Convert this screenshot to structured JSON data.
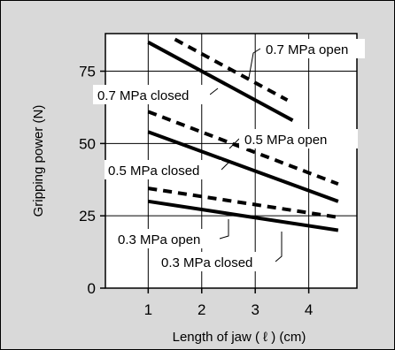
{
  "chart_data": {
    "type": "line",
    "xlabel": "Length of jaw ( ℓ ) (cm)",
    "ylabel": "Gripping power (N)",
    "xlim": [
      0.2,
      4.9
    ],
    "ylim": [
      0,
      88
    ],
    "x_ticks": [
      1,
      2,
      3,
      4
    ],
    "y_ticks": [
      0,
      25,
      50,
      75
    ],
    "grid": true,
    "series": [
      {
        "name": "0.7 MPa open",
        "style": "dashed",
        "points": [
          [
            1.5,
            86
          ],
          [
            3.6,
            65
          ]
        ]
      },
      {
        "name": "0.7 MPa closed",
        "style": "solid",
        "points": [
          [
            1.0,
            85
          ],
          [
            3.7,
            58
          ]
        ]
      },
      {
        "name": "0.5 MPa open",
        "style": "dashed",
        "points": [
          [
            1.0,
            61
          ],
          [
            4.55,
            36
          ]
        ]
      },
      {
        "name": "0.5 MPa closed",
        "style": "solid",
        "points": [
          [
            1.0,
            54
          ],
          [
            4.55,
            30
          ]
        ]
      },
      {
        "name": "0.3 MPa open",
        "style": "dashed",
        "points": [
          [
            1.0,
            34.5
          ],
          [
            4.55,
            24.5
          ]
        ]
      },
      {
        "name": "0.3 MPa closed",
        "style": "solid",
        "points": [
          [
            1.0,
            30
          ],
          [
            4.55,
            20
          ]
        ]
      }
    ]
  },
  "colors": {
    "background": "#d9d9d9",
    "plot": "#ffffff",
    "line": "#000000"
  }
}
